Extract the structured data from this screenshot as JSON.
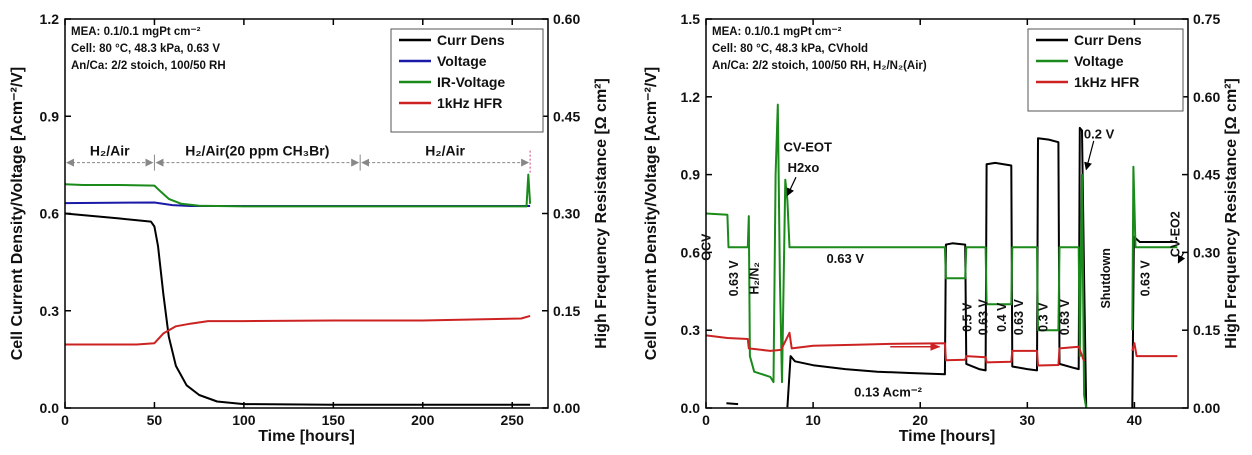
{
  "colors": {
    "curr_dens": "#000000",
    "voltage": "#1a1aa6",
    "ir_voltage": "#1a8a1a",
    "hfr": "#cc2222",
    "region_arrow": "#888888",
    "annotation_arrow": "#cc2222"
  },
  "chart_data": [
    {
      "type": "line",
      "xlabel": "Time [hours]",
      "ylabel": "Cell Current Density/Voltage [Acm⁻²/V]",
      "y2label": "High Frequency Resistance [Ω cm²]",
      "xlim": [
        0,
        270
      ],
      "ylim": [
        0,
        1.2
      ],
      "y2lim": [
        0,
        0.6
      ],
      "xticks": [
        "0",
        "50",
        "100",
        "150",
        "200",
        "250"
      ],
      "yticks": [
        "0.0",
        "0.3",
        "0.6",
        "0.9",
        "1.2"
      ],
      "y2ticks": [
        "0.00",
        "0.15",
        "0.30",
        "0.45",
        "0.60"
      ],
      "grid": false,
      "legend_position": "top-right",
      "info_lines": [
        "MEA: 0.1/0.1 mgPt cm⁻²",
        "Cell: 80 °C, 48.3 kPa, 0.63 V",
        "An/Ca: 2/2 stoich, 100/50 RH"
      ],
      "regions": [
        {
          "label": "H₂/Air",
          "x_start": 0,
          "x_end": 50
        },
        {
          "label": "H₂/Air(20 ppm CH₃Br)",
          "x_start": 50,
          "x_end": 165
        },
        {
          "label": "H₂/Air",
          "x_start": 165,
          "x_end": 260
        }
      ],
      "series": [
        {
          "name": "Curr Dens",
          "axis": "left",
          "color_key": "curr_dens",
          "points": [
            [
              0,
              0.6
            ],
            [
              10,
              0.595
            ],
            [
              30,
              0.585
            ],
            [
              48,
              0.575
            ],
            [
              50,
              0.56
            ],
            [
              52,
              0.5
            ],
            [
              55,
              0.35
            ],
            [
              58,
              0.22
            ],
            [
              62,
              0.13
            ],
            [
              68,
              0.07
            ],
            [
              75,
              0.04
            ],
            [
              85,
              0.02
            ],
            [
              100,
              0.012
            ],
            [
              150,
              0.01
            ],
            [
              200,
              0.01
            ],
            [
              260,
              0.01
            ]
          ]
        },
        {
          "name": "Voltage",
          "axis": "left",
          "color_key": "voltage",
          "points": [
            [
              0,
              0.632
            ],
            [
              50,
              0.634
            ],
            [
              60,
              0.626
            ],
            [
              70,
              0.623
            ],
            [
              260,
              0.623
            ]
          ]
        },
        {
          "name": "IR-Voltage",
          "axis": "left",
          "color_key": "ir_voltage",
          "points": [
            [
              0,
              0.69
            ],
            [
              10,
              0.688
            ],
            [
              30,
              0.688
            ],
            [
              50,
              0.686
            ],
            [
              53,
              0.67
            ],
            [
              58,
              0.645
            ],
            [
              65,
              0.63
            ],
            [
              75,
              0.624
            ],
            [
              100,
              0.622
            ],
            [
              258,
              0.622
            ],
            [
              259,
              0.72
            ],
            [
              260,
              0.63
            ]
          ]
        },
        {
          "name": "1kHz HFR",
          "axis": "right",
          "color_key": "hfr",
          "points": [
            [
              0,
              0.098
            ],
            [
              40,
              0.098
            ],
            [
              50,
              0.1
            ],
            [
              55,
              0.115
            ],
            [
              62,
              0.126
            ],
            [
              70,
              0.13
            ],
            [
              80,
              0.134
            ],
            [
              100,
              0.134
            ],
            [
              150,
              0.135
            ],
            [
              200,
              0.135
            ],
            [
              255,
              0.138
            ],
            [
              260,
              0.142
            ]
          ]
        }
      ]
    },
    {
      "type": "line",
      "xlabel": "Time [hours]",
      "ylabel": "Cell Current Density/Voltage [Acm⁻²/V]",
      "y2label": "High Frequency Resistance [Ω cm²]",
      "xlim": [
        0,
        45
      ],
      "ylim": [
        0,
        1.5
      ],
      "y2lim": [
        0,
        0.75
      ],
      "xticks": [
        "0",
        "10",
        "20",
        "30",
        "40"
      ],
      "yticks": [
        "0.0",
        "0.3",
        "0.6",
        "0.9",
        "1.2",
        "1.5"
      ],
      "y2ticks": [
        "0.00",
        "0.15",
        "0.30",
        "0.45",
        "0.60",
        "0.75"
      ],
      "grid": false,
      "legend_position": "top-right",
      "info_lines": [
        "MEA: 0.1/0.1 mgPt cm⁻²",
        "Cell: 80 °C, 48.3 kPa, CVhold",
        "An/Ca: 2/2 stoich, 100/50 RH, H₂/N₂(Air)"
      ],
      "annotations": [
        {
          "text": "OCV",
          "x": 0.4,
          "y": 0.62,
          "vertical": true
        },
        {
          "text": "0.63 V",
          "x": 3.0,
          "y": 0.5,
          "vertical": true
        },
        {
          "text": "H₂/N₂",
          "x": 4.9,
          "y": 0.5,
          "vertical": true
        },
        {
          "text": "CV-EOT",
          "x": 9.5,
          "y": 0.99
        },
        {
          "text": "H2xo",
          "x": 9.1,
          "y": 0.91
        },
        {
          "text": "0.63 V",
          "x": 13.0,
          "y": 0.56
        },
        {
          "text": "0.13 Acm⁻²",
          "x": 17.0,
          "y": 0.045
        },
        {
          "text": "0.5 V",
          "x": 24.8,
          "y": 0.35,
          "vertical": true
        },
        {
          "text": "0.63 V",
          "x": 26.3,
          "y": 0.35,
          "vertical": true
        },
        {
          "text": "0.4 V",
          "x": 28.0,
          "y": 0.35,
          "vertical": true
        },
        {
          "text": "0.63 V",
          "x": 29.6,
          "y": 0.35,
          "vertical": true
        },
        {
          "text": "0.3 V",
          "x": 31.9,
          "y": 0.35,
          "vertical": true
        },
        {
          "text": "0.63 V",
          "x": 33.9,
          "y": 0.35,
          "vertical": true
        },
        {
          "text": "0.2 V",
          "x": 36.7,
          "y": 1.04
        },
        {
          "text": "Shutdown",
          "x": 37.7,
          "y": 0.5,
          "vertical": true
        },
        {
          "text": "0.63 V",
          "x": 41.4,
          "y": 0.5,
          "vertical": true
        },
        {
          "text": "CV-EO2",
          "x": 44.2,
          "y": 0.67,
          "vertical": true
        }
      ],
      "series": [
        {
          "name": "Curr Dens",
          "axis": "left",
          "color_key": "curr_dens",
          "points": [
            [
              1.9,
              0.018
            ],
            [
              3.0,
              0.015
            ],
            [
              3.1,
              null
            ],
            [
              7.6,
              0.003
            ],
            [
              7.9,
              0.2
            ],
            [
              8.3,
              0.18
            ],
            [
              10,
              0.165
            ],
            [
              13,
              0.15
            ],
            [
              16,
              0.14
            ],
            [
              19,
              0.135
            ],
            [
              22.3,
              0.13
            ],
            [
              22.4,
              0.63
            ],
            [
              23.0,
              0.635
            ],
            [
              24.2,
              0.63
            ],
            [
              24.3,
              0.17
            ],
            [
              25.5,
              0.15
            ],
            [
              26.1,
              0.145
            ],
            [
              26.2,
              0.94
            ],
            [
              27.0,
              0.945
            ],
            [
              28.5,
              0.935
            ],
            [
              28.6,
              0.16
            ],
            [
              30,
              0.15
            ],
            [
              30.9,
              0.145
            ],
            [
              31.0,
              1.04
            ],
            [
              32.0,
              1.035
            ],
            [
              32.9,
              1.025
            ],
            [
              33.0,
              0.17
            ],
            [
              34.3,
              0.155
            ],
            [
              34.8,
              0.15
            ],
            [
              34.9,
              1.08
            ],
            [
              35.1,
              1.07
            ],
            [
              35.3,
              0.5
            ],
            [
              35.5,
              0.0
            ],
            [
              35.6,
              null
            ],
            [
              39.8,
              0.0
            ],
            [
              39.95,
              0.66
            ],
            [
              40.5,
              0.64
            ],
            [
              44,
              0.64
            ]
          ]
        },
        {
          "name": "Voltage",
          "axis": "left",
          "color_key": "ir_voltage",
          "points": [
            [
              0,
              0.75
            ],
            [
              2.0,
              0.745
            ],
            [
              2.1,
              0.62
            ],
            [
              3.9,
              0.62
            ],
            [
              4.0,
              0.74
            ],
            [
              4.1,
              0.2
            ],
            [
              4.5,
              0.14
            ],
            [
              6.0,
              0.12
            ],
            [
              6.3,
              0.1
            ],
            [
              6.5,
              0.9
            ],
            [
              6.7,
              1.17
            ],
            [
              6.9,
              0.5
            ],
            [
              7.1,
              0.1
            ],
            [
              7.4,
              0.88
            ],
            [
              7.6,
              0.8
            ],
            [
              7.8,
              0.62
            ],
            [
              22.3,
              0.62
            ],
            [
              22.4,
              0.5
            ],
            [
              24.2,
              0.5
            ],
            [
              24.3,
              0.62
            ],
            [
              26.1,
              0.62
            ],
            [
              26.2,
              0.4
            ],
            [
              28.5,
              0.4
            ],
            [
              28.6,
              0.62
            ],
            [
              30.9,
              0.62
            ],
            [
              31.0,
              0.3
            ],
            [
              32.9,
              0.3
            ],
            [
              33.0,
              0.62
            ],
            [
              34.8,
              0.62
            ],
            [
              34.9,
              0.2
            ],
            [
              35.1,
              0.9
            ],
            [
              35.3,
              0.05
            ],
            [
              35.5,
              0.0
            ],
            [
              35.6,
              null
            ],
            [
              39.8,
              0.3
            ],
            [
              39.9,
              0.93
            ],
            [
              40.1,
              0.62
            ],
            [
              44,
              0.62
            ]
          ]
        },
        {
          "name": "1kHz HFR",
          "axis": "right",
          "color_key": "hfr",
          "points": [
            [
              0,
              0.14
            ],
            [
              2,
              0.135
            ],
            [
              3.9,
              0.133
            ],
            [
              4.0,
              0.115
            ],
            [
              6.0,
              0.11
            ],
            [
              7.0,
              0.112
            ],
            [
              7.8,
              0.145
            ],
            [
              8.0,
              0.115
            ],
            [
              10,
              0.12
            ],
            [
              14,
              0.122
            ],
            [
              18,
              0.124
            ],
            [
              22.3,
              0.125
            ],
            [
              22.4,
              0.092
            ],
            [
              24.2,
              0.093
            ],
            [
              24.3,
              0.1
            ],
            [
              26.1,
              0.098
            ],
            [
              26.2,
              0.088
            ],
            [
              28.5,
              0.089
            ],
            [
              28.6,
              0.11
            ],
            [
              30.9,
              0.11
            ],
            [
              31.0,
              0.082
            ],
            [
              32.9,
              0.083
            ],
            [
              33.0,
              0.115
            ],
            [
              34.8,
              0.118
            ],
            [
              35.3,
              0.09
            ],
            [
              35.5,
              null
            ],
            [
              39.8,
              0.11
            ],
            [
              40.0,
              0.125
            ],
            [
              40.2,
              0.1
            ],
            [
              44,
              0.1
            ]
          ]
        }
      ]
    }
  ]
}
